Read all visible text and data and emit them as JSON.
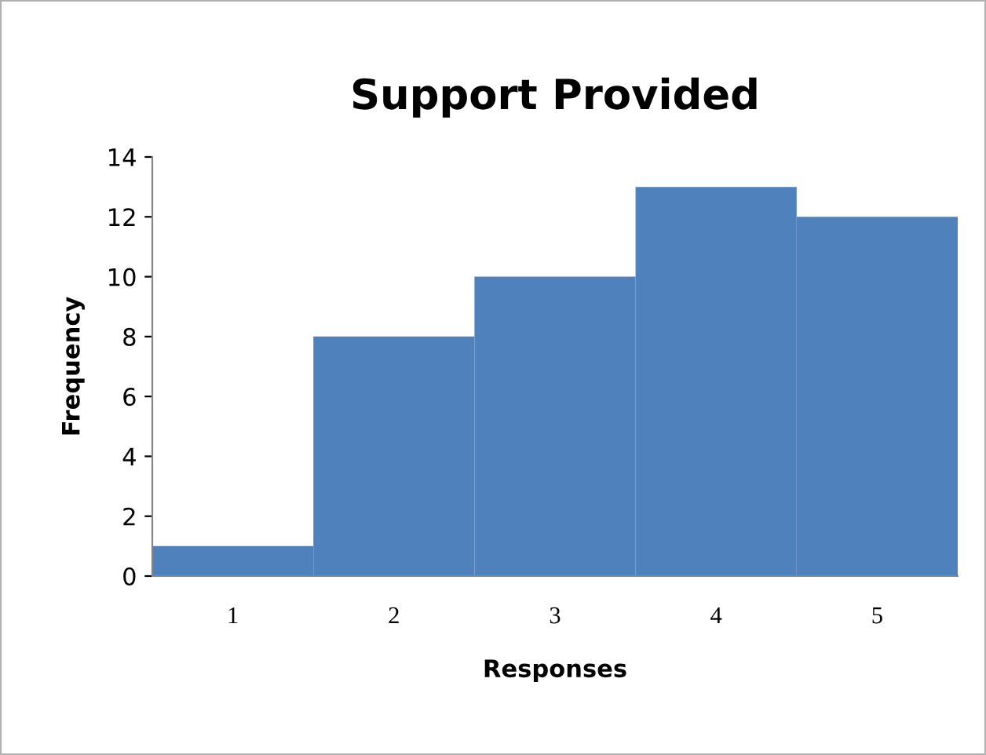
{
  "chart_data": {
    "type": "bar",
    "title": "Support Provided",
    "xlabel": "Responses",
    "ylabel": "Frequency",
    "categories": [
      "1",
      "2",
      "3",
      "4",
      "5"
    ],
    "values": [
      1,
      8,
      10,
      13,
      12
    ],
    "color": "#4f81bd",
    "ylim": [
      0,
      14
    ],
    "yticks": [
      0,
      2,
      4,
      6,
      8,
      10,
      12,
      14
    ],
    "grid": false,
    "legend": false
  }
}
